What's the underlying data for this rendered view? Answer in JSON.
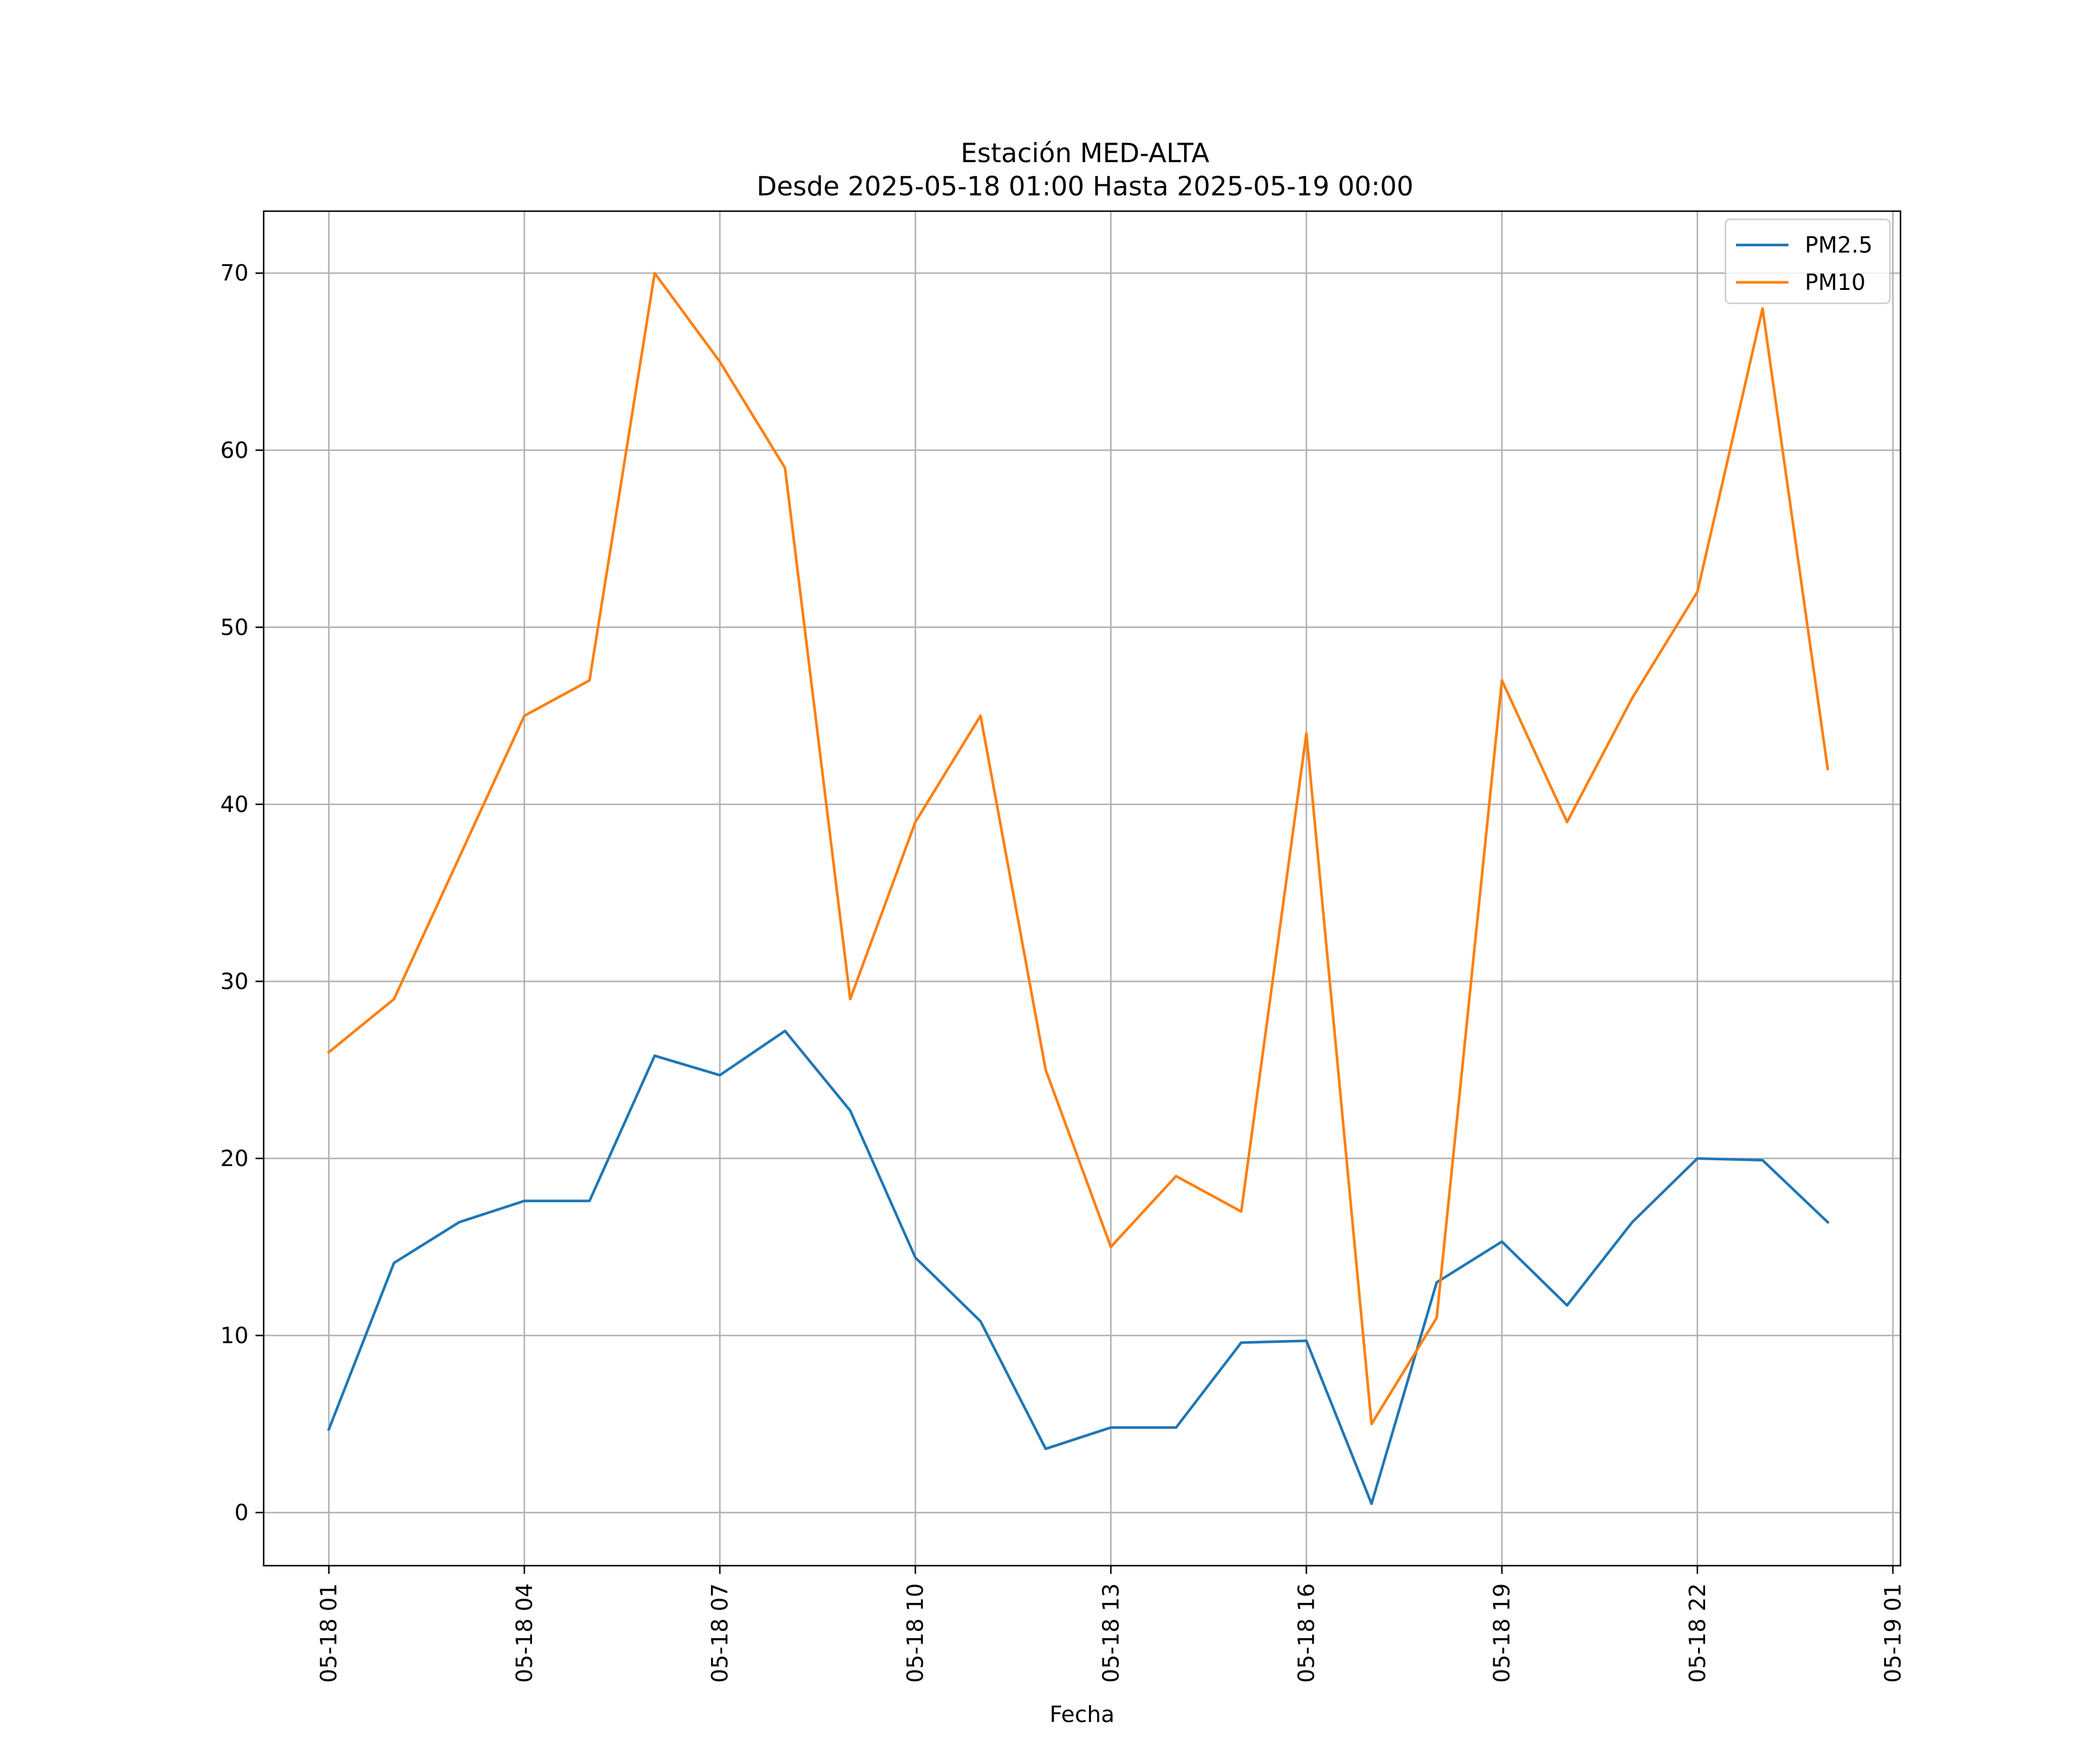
{
  "chart_data": {
    "type": "line",
    "title": "Estación MED-ALTA",
    "subtitle": "Desde 2025-05-18 01:00 Hasta 2025-05-19 00:00",
    "xlabel": "Fecha",
    "ylabel": "",
    "ylim": [
      -3,
      73.5
    ],
    "xlim": [
      "2025-05-18 00:00",
      "2025-05-19 01:07"
    ],
    "grid": true,
    "legend_position": "top-right",
    "x": [
      "2025-05-18 01:00",
      "2025-05-18 02:00",
      "2025-05-18 03:00",
      "2025-05-18 04:00",
      "2025-05-18 05:00",
      "2025-05-18 06:00",
      "2025-05-18 07:00",
      "2025-05-18 08:00",
      "2025-05-18 09:00",
      "2025-05-18 10:00",
      "2025-05-18 11:00",
      "2025-05-18 12:00",
      "2025-05-18 13:00",
      "2025-05-18 14:00",
      "2025-05-18 15:00",
      "2025-05-18 16:00",
      "2025-05-18 17:00",
      "2025-05-18 18:00",
      "2025-05-18 19:00",
      "2025-05-18 20:00",
      "2025-05-18 21:00",
      "2025-05-18 22:00",
      "2025-05-18 23:00",
      "2025-05-19 00:00"
    ],
    "x_ticks": [
      {
        "value": "2025-05-18 01:00",
        "label": "05-18 01"
      },
      {
        "value": "2025-05-18 04:00",
        "label": "05-18 04"
      },
      {
        "value": "2025-05-18 07:00",
        "label": "05-18 07"
      },
      {
        "value": "2025-05-18 10:00",
        "label": "05-18 10"
      },
      {
        "value": "2025-05-18 13:00",
        "label": "05-18 13"
      },
      {
        "value": "2025-05-18 16:00",
        "label": "05-18 16"
      },
      {
        "value": "2025-05-18 19:00",
        "label": "05-18 19"
      },
      {
        "value": "2025-05-18 22:00",
        "label": "05-18 22"
      },
      {
        "value": "2025-05-19 01:00",
        "label": "05-19 01"
      }
    ],
    "y_ticks": [
      0,
      10,
      20,
      30,
      40,
      50,
      60,
      70
    ],
    "series": [
      {
        "name": "PM2.5",
        "color": "#1f77b4",
        "values": [
          4.7,
          14.1,
          16.4,
          17.6,
          17.6,
          25.8,
          24.7,
          27.2,
          22.7,
          14.4,
          10.8,
          3.6,
          4.8,
          4.8,
          9.6,
          9.7,
          0.5,
          13.0,
          15.3,
          11.7,
          16.4,
          20.0,
          19.9,
          16.4
        ]
      },
      {
        "name": "PM10",
        "color": "#ff7f0e",
        "values": [
          26,
          29,
          37,
          45,
          47,
          70,
          65,
          59,
          29,
          39,
          45,
          25,
          15,
          19,
          17,
          44,
          5,
          11,
          47,
          39,
          46,
          52,
          68,
          42
        ]
      }
    ]
  }
}
